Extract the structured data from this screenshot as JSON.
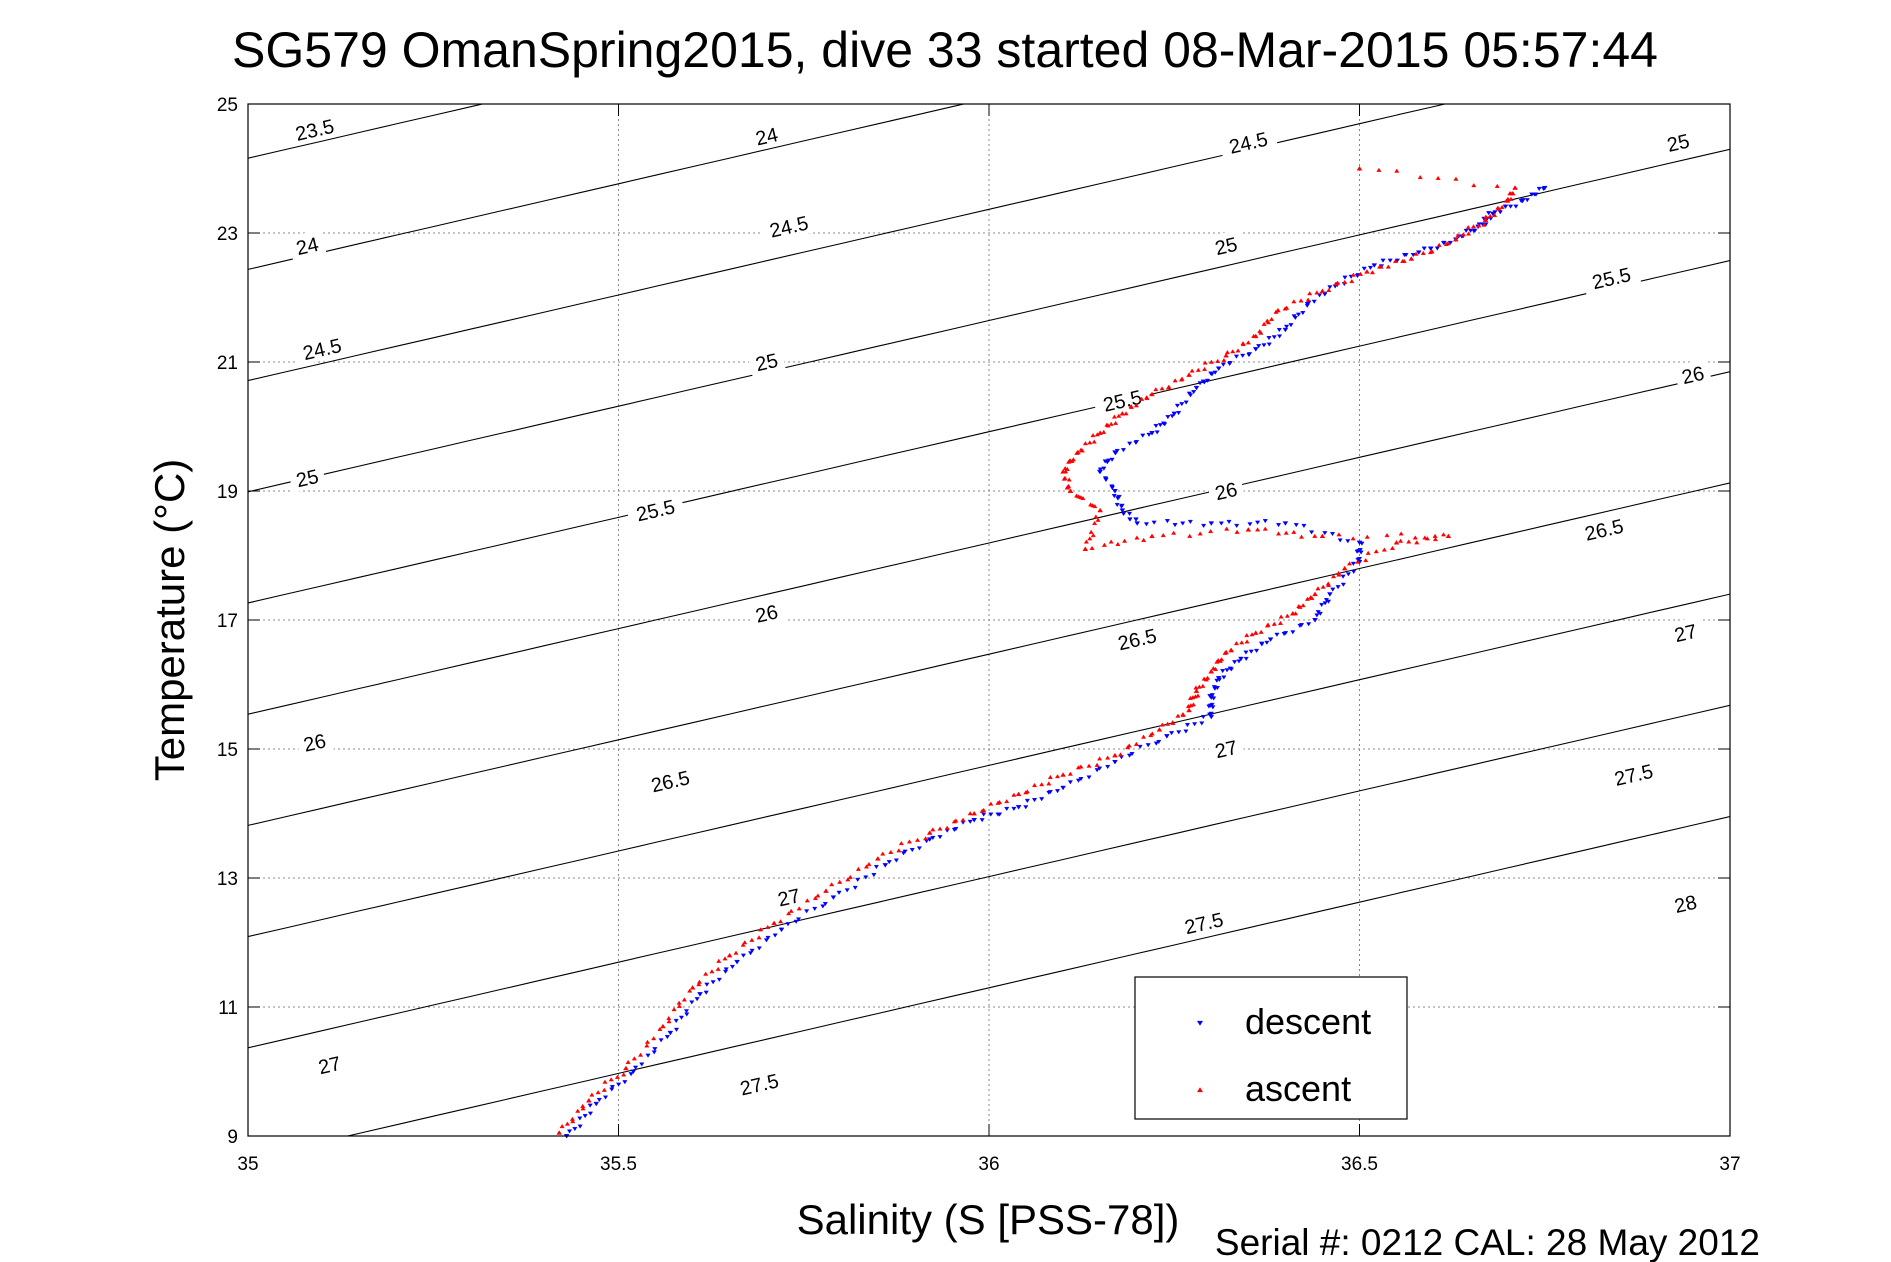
{
  "chart_data": {
    "type": "scatter",
    "title": "SG579 OmanSpring2015, dive 33 started 08-Mar-2015 05:57:44",
    "xlabel": "Salinity (S [PSS-78])",
    "ylabel": "Temperature (°C)",
    "xlim": [
      35,
      37
    ],
    "ylim": [
      9,
      25
    ],
    "x_ticks": [
      35,
      35.5,
      36,
      36.5,
      37
    ],
    "x_tick_labels": [
      "35",
      "35.5",
      "36",
      "36.5",
      "37"
    ],
    "y_ticks": [
      9,
      11,
      13,
      15,
      17,
      19,
      21,
      23,
      25
    ],
    "y_tick_labels": [
      "9",
      "11",
      "13",
      "15",
      "17",
      "19",
      "21",
      "23",
      "25"
    ],
    "grid": true,
    "legend_position": "bottom-right",
    "density_contours": {
      "levels": [
        23.5,
        24,
        24.5,
        25,
        25.5,
        26,
        26.5,
        27,
        27.5,
        28
      ],
      "label_points": [
        {
          "label": "23.5",
          "s": 35.09,
          "t": 24.6
        },
        {
          "label": "24",
          "s": 35.08,
          "t": 22.8
        },
        {
          "label": "24.5",
          "s": 35.1,
          "t": 21.2
        },
        {
          "label": "25",
          "s": 35.08,
          "t": 19.2
        },
        {
          "label": "25.5",
          "s": 35.55,
          "t": 18.7
        },
        {
          "label": "26",
          "s": 35.09,
          "t": 15.1
        },
        {
          "label": "26.5",
          "s": 35.57,
          "t": 14.5
        },
        {
          "label": "27",
          "s": 35.11,
          "t": 10.1
        },
        {
          "label": "27.5",
          "s": 35.69,
          "t": 9.8
        },
        {
          "label": "24",
          "s": 35.7,
          "t": 24.5
        },
        {
          "label": "24.5",
          "s": 35.73,
          "t": 23.1
        },
        {
          "label": "25",
          "s": 35.7,
          "t": 21.0
        },
        {
          "label": "26",
          "s": 35.7,
          "t": 17.1
        },
        {
          "label": "27",
          "s": 35.73,
          "t": 12.7
        },
        {
          "label": "24.5",
          "s": 36.35,
          "t": 24.4
        },
        {
          "label": "25",
          "s": 36.32,
          "t": 22.8
        },
        {
          "label": "25.5",
          "s": 36.18,
          "t": 20.4
        },
        {
          "label": "26",
          "s": 36.32,
          "t": 19.0
        },
        {
          "label": "26.5",
          "s": 36.2,
          "t": 16.7
        },
        {
          "label": "27",
          "s": 36.32,
          "t": 15.0
        },
        {
          "label": "27.5",
          "s": 36.29,
          "t": 12.3
        },
        {
          "label": "25",
          "s": 36.93,
          "t": 24.4
        },
        {
          "label": "25.5",
          "s": 36.84,
          "t": 22.3
        },
        {
          "label": "26",
          "s": 36.95,
          "t": 20.8
        },
        {
          "label": "26.5",
          "s": 36.83,
          "t": 18.4
        },
        {
          "label": "27",
          "s": 36.94,
          "t": 16.8
        },
        {
          "label": "27.5",
          "s": 36.87,
          "t": 14.6
        },
        {
          "label": "28",
          "s": 36.94,
          "t": 12.6
        }
      ]
    },
    "series": [
      {
        "name": "descent",
        "color": "#0000ff",
        "marker": "triangle-down",
        "points": [
          [
            35.43,
            9.0
          ],
          [
            35.47,
            9.5
          ],
          [
            35.52,
            10.0
          ],
          [
            35.57,
            10.6
          ],
          [
            35.61,
            11.2
          ],
          [
            35.66,
            11.7
          ],
          [
            35.72,
            12.2
          ],
          [
            35.79,
            12.7
          ],
          [
            35.86,
            13.2
          ],
          [
            35.92,
            13.6
          ],
          [
            35.98,
            13.9
          ],
          [
            36.04,
            14.1
          ],
          [
            36.1,
            14.4
          ],
          [
            36.17,
            14.8
          ],
          [
            36.24,
            15.2
          ],
          [
            36.3,
            15.5
          ],
          [
            36.3,
            15.8
          ],
          [
            36.31,
            16.1
          ],
          [
            36.34,
            16.4
          ],
          [
            36.38,
            16.7
          ],
          [
            36.44,
            17.0
          ],
          [
            36.46,
            17.4
          ],
          [
            36.5,
            17.9
          ],
          [
            36.5,
            18.2
          ],
          [
            36.4,
            18.5
          ],
          [
            36.3,
            18.5
          ],
          [
            36.2,
            18.5
          ],
          [
            36.18,
            18.7
          ],
          [
            36.17,
            19.0
          ],
          [
            36.15,
            19.3
          ],
          [
            36.17,
            19.6
          ],
          [
            36.22,
            19.9
          ],
          [
            36.25,
            20.2
          ],
          [
            36.28,
            20.6
          ],
          [
            36.31,
            20.9
          ],
          [
            36.36,
            21.2
          ],
          [
            36.4,
            21.5
          ],
          [
            36.43,
            21.9
          ],
          [
            36.47,
            22.2
          ],
          [
            36.52,
            22.5
          ],
          [
            36.58,
            22.7
          ],
          [
            36.63,
            22.9
          ],
          [
            36.66,
            23.1
          ],
          [
            36.68,
            23.3
          ],
          [
            36.72,
            23.5
          ],
          [
            36.75,
            23.7
          ]
        ]
      },
      {
        "name": "ascent",
        "color": "#ff0000",
        "marker": "triangle-up",
        "points": [
          [
            35.42,
            9.05
          ],
          [
            35.46,
            9.55
          ],
          [
            35.51,
            10.05
          ],
          [
            35.56,
            10.7
          ],
          [
            35.6,
            11.3
          ],
          [
            35.65,
            11.8
          ],
          [
            35.71,
            12.3
          ],
          [
            35.78,
            12.8
          ],
          [
            35.85,
            13.3
          ],
          [
            35.92,
            13.7
          ],
          [
            35.98,
            14.0
          ],
          [
            36.04,
            14.3
          ],
          [
            36.1,
            14.6
          ],
          [
            36.17,
            14.9
          ],
          [
            36.23,
            15.3
          ],
          [
            36.27,
            15.6
          ],
          [
            36.28,
            15.9
          ],
          [
            36.3,
            16.2
          ],
          [
            36.32,
            16.5
          ],
          [
            36.36,
            16.8
          ],
          [
            36.41,
            17.1
          ],
          [
            36.44,
            17.4
          ],
          [
            36.48,
            17.8
          ],
          [
            36.55,
            18.2
          ],
          [
            36.62,
            18.3
          ],
          [
            36.45,
            18.3
          ],
          [
            36.35,
            18.4
          ],
          [
            36.22,
            18.3
          ],
          [
            36.13,
            18.1
          ],
          [
            36.15,
            18.7
          ],
          [
            36.11,
            19.0
          ],
          [
            36.1,
            19.3
          ],
          [
            36.12,
            19.6
          ],
          [
            36.15,
            19.9
          ],
          [
            36.18,
            20.2
          ],
          [
            36.22,
            20.5
          ],
          [
            36.27,
            20.8
          ],
          [
            36.32,
            21.1
          ],
          [
            36.36,
            21.4
          ],
          [
            36.39,
            21.8
          ],
          [
            36.45,
            22.1
          ],
          [
            36.51,
            22.4
          ],
          [
            36.57,
            22.6
          ],
          [
            36.63,
            22.9
          ],
          [
            36.67,
            23.2
          ],
          [
            36.7,
            23.5
          ],
          [
            36.71,
            23.7
          ],
          [
            36.5,
            24.0
          ]
        ]
      }
    ]
  },
  "footer": "Serial #: 0212  CAL: 28 May 2012"
}
